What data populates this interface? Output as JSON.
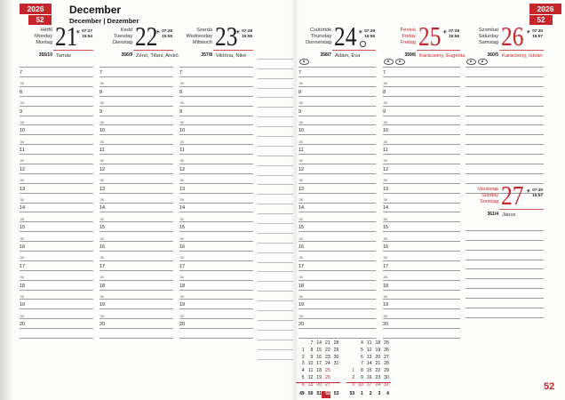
{
  "meta": {
    "year": "2026",
    "week": "52",
    "month": "December",
    "subtitle": "December | Dezember",
    "page_number": "52"
  },
  "colors": {
    "accent": "#c5262c",
    "underline": "#d05353",
    "grid_line": "#9b9b9b"
  },
  "grid": {
    "half_label": "30",
    "slot_labels": [
      "",
      "7",
      "30",
      "8",
      "30",
      "9",
      "30",
      "10",
      "30",
      "11",
      "30",
      "12",
      "30",
      "13",
      "30",
      "14",
      "30",
      "15",
      "30",
      "16",
      "30",
      "17",
      "30",
      "18",
      "30",
      "19",
      "30",
      "20",
      ""
    ]
  },
  "days": [
    {
      "names": [
        "Hétfő",
        "Monday",
        "Montag"
      ],
      "number": "21",
      "sunrise": "07:27",
      "sunset": "15:54",
      "doy": "355/10",
      "name_days": "Tamás",
      "names_red": false,
      "number_red": false,
      "name_days_red": false,
      "ornaments": 0,
      "moon": false
    },
    {
      "names": [
        "Kedd",
        "Tuesday",
        "Dienstag"
      ],
      "number": "22",
      "sunrise": "07:28",
      "sunset": "15:55",
      "doy": "356/9",
      "name_days": "Zénó, Tifani, Anikó",
      "names_red": false,
      "number_red": false,
      "name_days_red": false,
      "ornaments": 0,
      "moon": false
    },
    {
      "names": [
        "Szerda",
        "Wednesday",
        "Mittwoch"
      ],
      "number": "23",
      "sunrise": "07:28",
      "sunset": "15:55",
      "doy": "357/8",
      "name_days": "Viktória, Niké",
      "names_red": false,
      "number_red": false,
      "name_days_red": false,
      "ornaments": 0,
      "moon": false
    },
    {
      "names": [
        "Csütörtök",
        "Thursday",
        "Donnerstag"
      ],
      "number": "24",
      "sunrise": "07:29",
      "sunset": "15:56",
      "doy": "358/7",
      "name_days": "Ádám, Éva",
      "names_red": false,
      "number_red": false,
      "name_days_red": false,
      "ornaments": 1,
      "moon": true
    },
    {
      "names": [
        "Péntek",
        "Friday",
        "Freitag"
      ],
      "number": "25",
      "sunrise": "07:29",
      "sunset": "15:56",
      "doy": "359/6",
      "name_days": "Karácsony, Eugénia",
      "names_red": true,
      "number_red": true,
      "name_days_red": true,
      "ornaments": 2,
      "moon": false
    },
    {
      "names": [
        "Szombat",
        "Saturday",
        "Samstag"
      ],
      "number": "26",
      "sunrise": "07:30",
      "sunset": "15:57",
      "doy": "360/5",
      "name_days": "Karácsony, István",
      "names_red": false,
      "number_red": true,
      "name_days_red": true,
      "ornaments": 2,
      "moon": false
    },
    {
      "names": [
        "Vasárnap",
        "Sunday",
        "Sonntag"
      ],
      "number": "27",
      "sunrise": "07:30",
      "sunset": "15:57",
      "doy": "361/4",
      "name_days": "János",
      "names_red": true,
      "number_red": true,
      "name_days_red": false,
      "ornaments": 0,
      "moon": false
    }
  ],
  "mini_calendars": {
    "months": [
      {
        "cells": [
          [
            [
              "",
              0
            ],
            [
              "7",
              0
            ],
            [
              "14",
              0
            ],
            [
              "21",
              0
            ],
            [
              "28",
              0
            ]
          ],
          [
            [
              "1",
              0
            ],
            [
              "8",
              0
            ],
            [
              "15",
              0
            ],
            [
              "22",
              0
            ],
            [
              "29",
              0
            ]
          ],
          [
            [
              "2",
              0
            ],
            [
              "9",
              0
            ],
            [
              "16",
              0
            ],
            [
              "23",
              0
            ],
            [
              "30",
              0
            ]
          ],
          [
            [
              "3",
              0
            ],
            [
              "10",
              0
            ],
            [
              "17",
              0
            ],
            [
              "24",
              0
            ],
            [
              "31",
              0
            ]
          ],
          [
            [
              "4",
              0
            ],
            [
              "11",
              0
            ],
            [
              "18",
              0
            ],
            [
              "25",
              1
            ],
            [
              "",
              0
            ]
          ],
          [
            [
              "5",
              0
            ],
            [
              "12",
              0
            ],
            [
              "19",
              0
            ],
            [
              "26",
              1
            ],
            [
              "",
              0
            ]
          ],
          [
            [
              "6",
              1
            ],
            [
              "13",
              1
            ],
            [
              "20",
              1
            ],
            [
              "27",
              1
            ],
            [
              "",
              0
            ]
          ]
        ],
        "weeks": [
          [
            "49",
            0
          ],
          [
            "50",
            0
          ],
          [
            "51",
            0
          ],
          [
            "52",
            2
          ],
          [
            "53",
            0
          ]
        ]
      },
      {
        "cells": [
          [
            [
              "",
              0
            ],
            [
              "4",
              0
            ],
            [
              "11",
              0
            ],
            [
              "18",
              0
            ],
            [
              "25",
              0
            ]
          ],
          [
            [
              "",
              0
            ],
            [
              "5",
              0
            ],
            [
              "12",
              0
            ],
            [
              "19",
              0
            ],
            [
              "26",
              0
            ]
          ],
          [
            [
              "",
              0
            ],
            [
              "6",
              0
            ],
            [
              "13",
              0
            ],
            [
              "20",
              0
            ],
            [
              "27",
              0
            ]
          ],
          [
            [
              "",
              0
            ],
            [
              "7",
              0
            ],
            [
              "14",
              0
            ],
            [
              "21",
              0
            ],
            [
              "28",
              0
            ]
          ],
          [
            [
              "1",
              1
            ],
            [
              "8",
              0
            ],
            [
              "15",
              0
            ],
            [
              "22",
              0
            ],
            [
              "29",
              0
            ]
          ],
          [
            [
              "2",
              0
            ],
            [
              "9",
              0
            ],
            [
              "16",
              0
            ],
            [
              "23",
              0
            ],
            [
              "30",
              0
            ]
          ],
          [
            [
              "3",
              1
            ],
            [
              "10",
              1
            ],
            [
              "17",
              1
            ],
            [
              "24",
              1
            ],
            [
              "31",
              1
            ]
          ]
        ],
        "weeks": [
          [
            "53",
            0
          ],
          [
            "1",
            0
          ],
          [
            "2",
            0
          ],
          [
            "3",
            0
          ],
          [
            "4",
            0
          ]
        ]
      }
    ]
  }
}
